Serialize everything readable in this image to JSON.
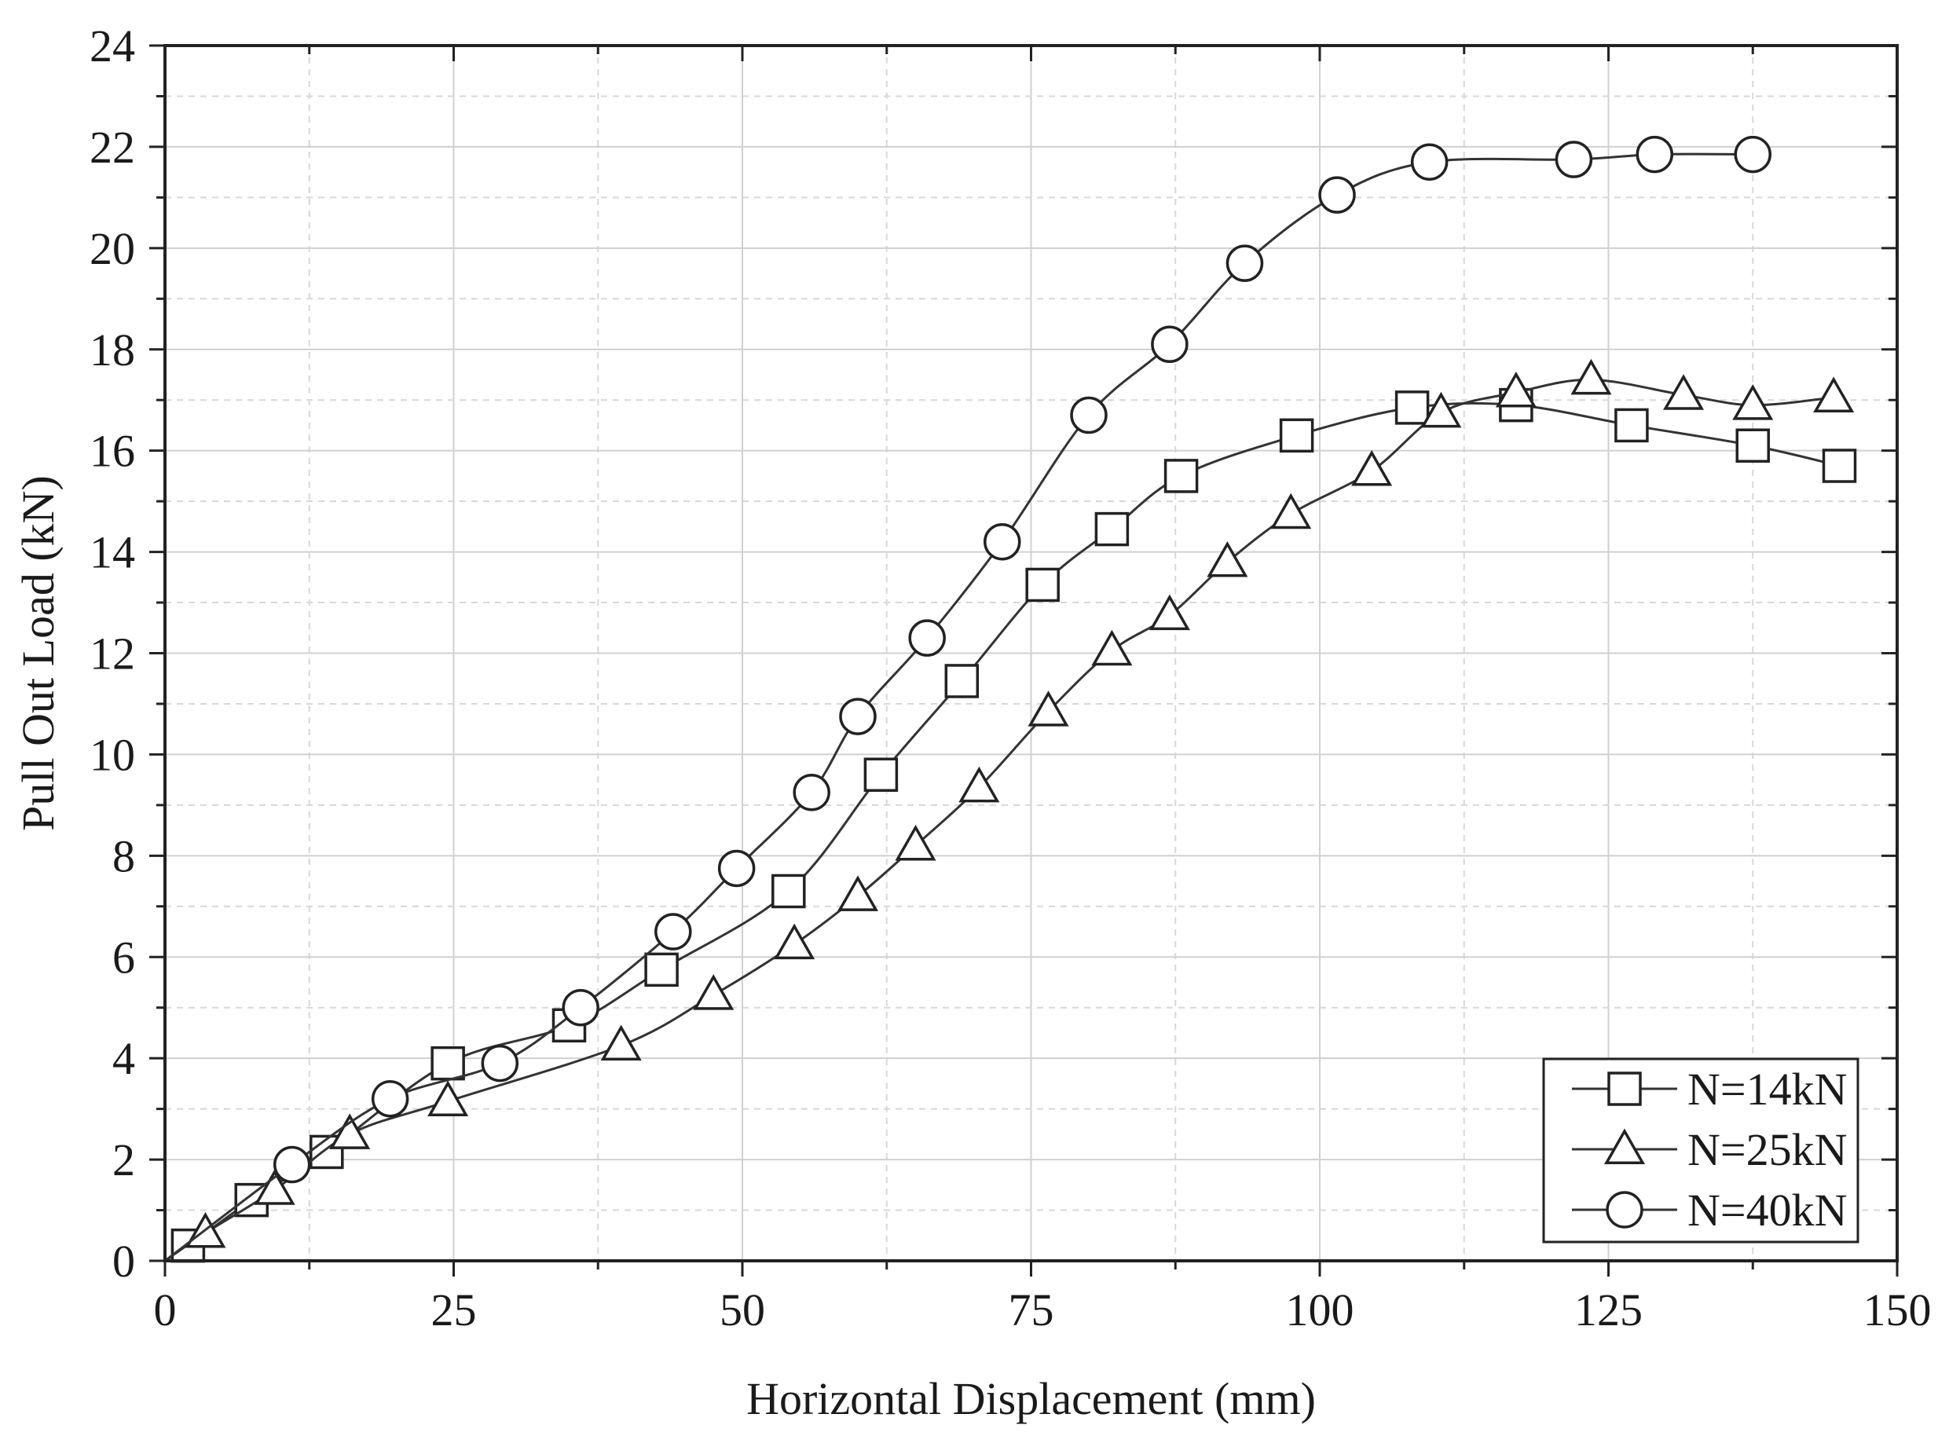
{
  "chart_data": {
    "type": "line",
    "title": "",
    "xlabel": "Horizontal Displacement (mm)",
    "ylabel": "Pull Out Load (kN)",
    "xlim": [
      0,
      150
    ],
    "ylim": [
      0,
      24
    ],
    "x_ticks": [
      "0",
      "25",
      "50",
      "75",
      "100",
      "125",
      "150"
    ],
    "y_ticks": [
      "0",
      "2",
      "4",
      "6",
      "8",
      "10",
      "12",
      "14",
      "16",
      "18",
      "20",
      "22",
      "24"
    ],
    "grid": true,
    "legend_position": "bottom-right",
    "series": [
      {
        "name": "N=14kN",
        "marker": "square",
        "x": [
          0,
          2,
          7.5,
          14,
          24.5,
          35,
          43,
          54,
          62,
          69,
          76,
          82,
          88,
          98,
          108,
          117,
          127,
          137.5,
          145
        ],
        "y": [
          0,
          0.3,
          1.2,
          2.15,
          3.9,
          4.65,
          5.75,
          7.3,
          9.6,
          11.45,
          13.35,
          14.45,
          15.5,
          16.3,
          16.85,
          16.9,
          16.5,
          16.1,
          15.7
        ]
      },
      {
        "name": "N=25kN",
        "marker": "triangle",
        "x": [
          0,
          3.5,
          9.5,
          16,
          24.5,
          39.5,
          47.5,
          54.5,
          60,
          65,
          70.5,
          76.5,
          82,
          87,
          92,
          97.5,
          104.5,
          110.5,
          117,
          123.5,
          131.5,
          137.5,
          144.5
        ],
        "y": [
          0,
          0.55,
          1.4,
          2.5,
          3.15,
          4.25,
          5.25,
          6.25,
          7.2,
          8.2,
          9.35,
          10.85,
          12.05,
          12.75,
          13.8,
          14.75,
          15.6,
          16.75,
          17.15,
          17.4,
          17.1,
          16.9,
          17.05
        ]
      },
      {
        "name": "N=40kN",
        "marker": "circle",
        "x": [
          0,
          11,
          19.5,
          29,
          36,
          44,
          49.5,
          56,
          60,
          66,
          72.5,
          80,
          87,
          93.5,
          101.5,
          109.5,
          122,
          129,
          137.5
        ],
        "y": [
          0,
          1.9,
          3.2,
          3.9,
          5.0,
          6.5,
          7.75,
          9.25,
          10.75,
          12.3,
          14.2,
          16.7,
          18.1,
          19.7,
          21.05,
          21.7,
          21.75,
          21.85,
          21.85
        ]
      }
    ]
  }
}
